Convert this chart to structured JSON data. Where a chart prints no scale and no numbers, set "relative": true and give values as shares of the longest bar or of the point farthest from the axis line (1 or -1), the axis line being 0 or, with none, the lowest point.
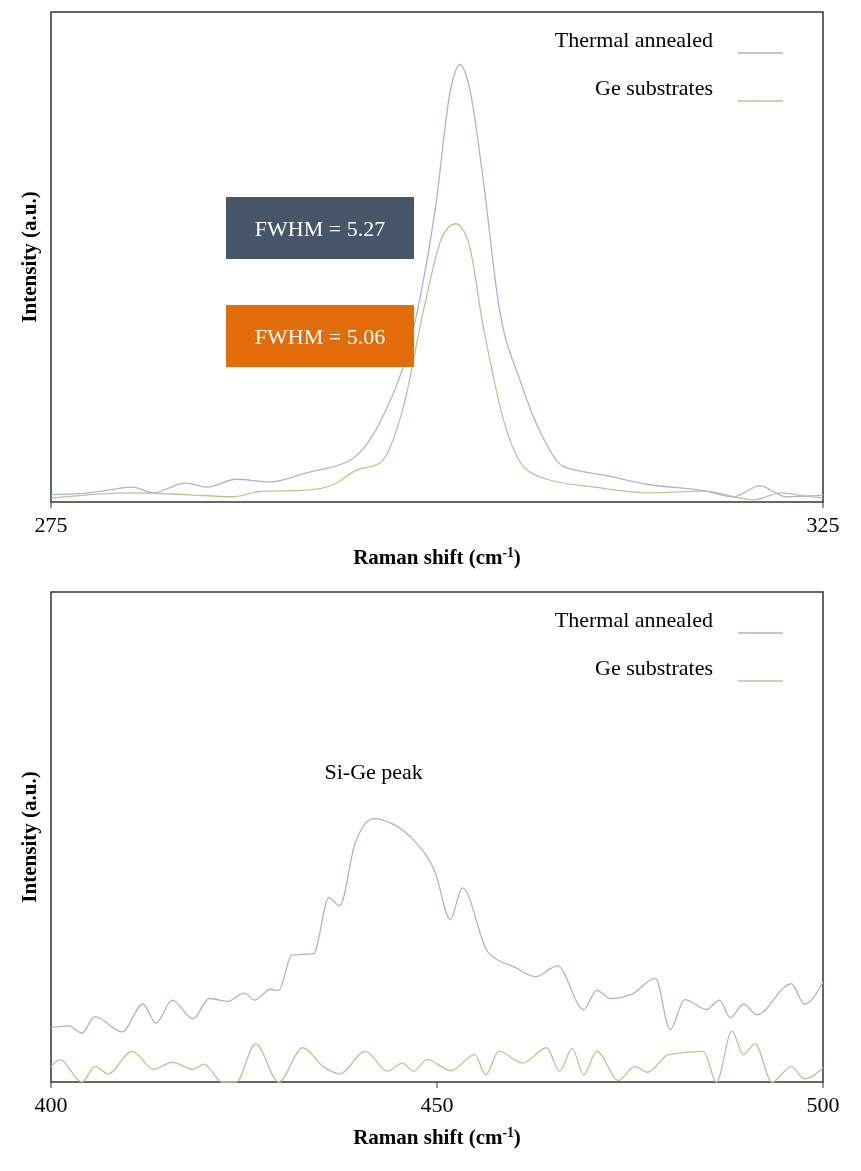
{
  "chart_data": [
    {
      "type": "line",
      "relative": true,
      "xlabel": "Raman shift (cm$^{-1}$)",
      "ylabel": "Intensity (a.u.)",
      "xlim": [
        275,
        325
      ],
      "xticks": [
        275,
        325
      ],
      "legend": "top right",
      "grid": false,
      "marker": "none",
      "line_style": "solid",
      "annotations": [
        "FWHM = 5.27",
        "FWHM = 5.06"
      ],
      "series": [
        {
          "name": "Thermal annealed",
          "color": "#a9b6cf",
          "x": [
            275,
            277.5,
            280.3,
            281.6,
            283.7,
            285.1,
            287.0,
            289.2,
            291.6,
            294.4,
            296.4,
            298.5,
            299.9,
            300.9,
            301.5,
            302.1,
            303.0,
            304.0,
            305.4,
            306.8,
            308.2,
            310.9,
            313.7,
            317.1,
            319.2,
            320.9,
            322.6,
            325
          ],
          "values": [
            0.017,
            0.021,
            0.034,
            0.021,
            0.043,
            0.034,
            0.052,
            0.046,
            0.067,
            0.096,
            0.189,
            0.4,
            0.673,
            0.947,
            1.0,
            0.947,
            0.735,
            0.45,
            0.276,
            0.152,
            0.081,
            0.061,
            0.04,
            0.027,
            0.012,
            0.037,
            0.012,
            0.015
          ]
        },
        {
          "name": "Ge substrates",
          "color": "#cdbb95",
          "x": [
            275,
            280.3,
            283.7,
            286.8,
            288.5,
            291.6,
            293.3,
            294.7,
            296.3,
            297.8,
            299.2,
            300.4,
            301.2,
            302.0,
            303.0,
            304.4,
            305.7,
            307.1,
            310.2,
            313.7,
            317.4,
            319.2,
            320.5,
            322.3,
            323.6,
            325
          ],
          "values": [
            0.009,
            0.021,
            0.017,
            0.012,
            0.024,
            0.027,
            0.04,
            0.071,
            0.089,
            0.214,
            0.45,
            0.611,
            0.636,
            0.599,
            0.4,
            0.176,
            0.077,
            0.052,
            0.034,
            0.021,
            0.025,
            0.012,
            0.005,
            0.021,
            0.015,
            0.009
          ]
        }
      ]
    },
    {
      "type": "line",
      "relative": true,
      "xlabel": "Raman shift (cm$^{-1}$)",
      "ylabel": "Intensity (a.u.)",
      "xlim": [
        400,
        500
      ],
      "xticks": [
        400,
        450,
        500
      ],
      "legend": "top right",
      "grid": false,
      "marker": "none",
      "line_style": "solid",
      "annotations": [
        {
          "text": "Si-Ge peak",
          "x": 441.8,
          "y": 1.0
        }
      ],
      "series": [
        {
          "name": "Thermal annealed",
          "color": "#a9b6cf",
          "x": [
            400,
            402.3,
            404.0,
            405.7,
            409.2,
            411.9,
            413.6,
            415.7,
            418.4,
            420.5,
            422.9,
            425.0,
            426.4,
            428.4,
            429.5,
            431.2,
            434.0,
            436.0,
            437.4,
            439.4,
            441.8,
            444.3,
            447.0,
            449.8,
            451.7,
            453.3,
            456.6,
            460.1,
            462.8,
            465.6,
            469.0,
            470.7,
            472.5,
            475.2,
            478.3,
            480.2,
            482.1,
            484.9,
            486.6,
            488.0,
            489.7,
            491.4,
            495.9,
            497.6,
            500
          ],
          "values": [
            0.207,
            0.213,
            0.186,
            0.248,
            0.19,
            0.296,
            0.224,
            0.311,
            0.24,
            0.317,
            0.306,
            0.337,
            0.311,
            0.352,
            0.348,
            0.482,
            0.487,
            0.7,
            0.669,
            0.907,
            1.0,
            0.979,
            0.917,
            0.793,
            0.617,
            0.737,
            0.493,
            0.435,
            0.4,
            0.441,
            0.275,
            0.348,
            0.317,
            0.333,
            0.393,
            0.199,
            0.313,
            0.275,
            0.311,
            0.244,
            0.296,
            0.255,
            0.373,
            0.296,
            0.379
          ]
        },
        {
          "name": "Ge substrates",
          "color": "#cdbb95",
          "x": [
            400,
            401.2,
            403.6,
            404.0,
            405.7,
            407.4,
            410.5,
            413.3,
            415.7,
            418.4,
            419.8,
            422.2,
            424.0,
            426.5,
            429.5,
            432.6,
            435.3,
            437.4,
            440.7,
            443.6,
            445.5,
            447.0,
            448.7,
            451.8,
            454.9,
            456.3,
            458.0,
            461.1,
            464.2,
            465.9,
            467.5,
            469.0,
            470.7,
            473.5,
            475.6,
            477.3,
            480.0,
            484.5,
            486.2,
            488.2,
            489.7,
            491.2,
            493.4,
            495.9,
            497.6,
            500
          ],
          "values": [
            0.058,
            0.085,
            0.006,
            0,
            0.058,
            0.031,
            0.116,
            0.048,
            0.075,
            0.048,
            0.068,
            0,
            0,
            0.145,
            0,
            0.13,
            0.058,
            0.031,
            0.116,
            0.041,
            0.072,
            0.041,
            0.085,
            0.043,
            0.104,
            0.027,
            0.116,
            0.072,
            0.13,
            0.041,
            0.128,
            0.027,
            0.116,
            0.006,
            0.058,
            0.037,
            0.104,
            0.116,
            0,
            0.193,
            0.104,
            0.145,
            0,
            0.058,
            0.012,
            0.054
          ]
        }
      ]
    }
  ]
}
